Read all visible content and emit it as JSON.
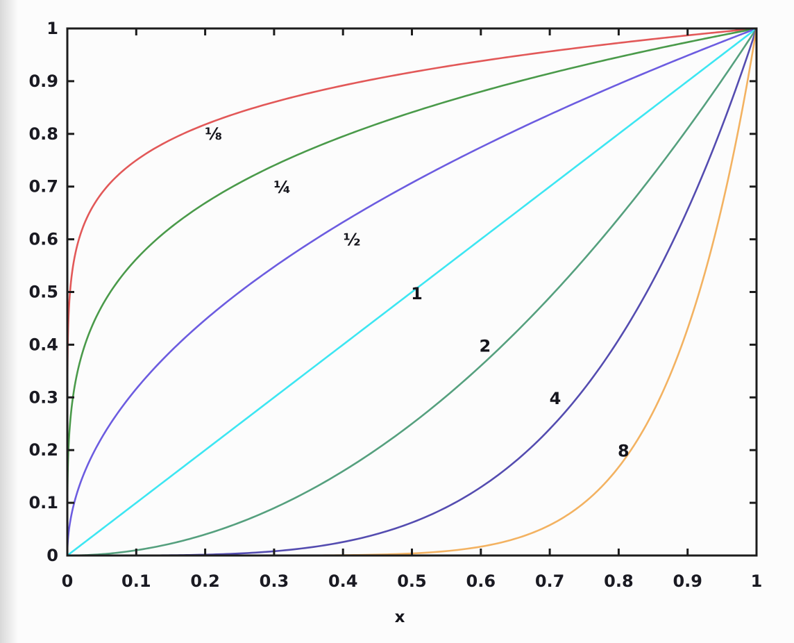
{
  "style": {
    "background": "#fcfcfc",
    "axis_color": "#1c1c1c",
    "tick_label_color": "#1a1a22",
    "curve_label_color": "#15151c"
  },
  "chart_data": {
    "type": "line",
    "title": "",
    "subtitle": "",
    "xlabel": "x",
    "ylabel": "",
    "xlim": [
      0,
      1
    ],
    "ylim": [
      0,
      1
    ],
    "grid": false,
    "legend": "inline-curve-labels",
    "description": "Family of power curves y = x^p on the unit square; each curve labeled with its exponent p; all curves pass through (0,0) and (1,1).",
    "xticks": {
      "values": [
        0,
        0.1,
        0.2,
        0.3,
        0.4,
        0.5,
        0.6,
        0.7,
        0.8,
        0.9,
        1
      ],
      "labels": [
        "0",
        "0.1",
        "0.2",
        "0.3",
        "0.4",
        "0.5",
        "0.6",
        "0.7",
        "0.8",
        "0.9",
        "1"
      ]
    },
    "yticks": {
      "values": [
        0,
        0.1,
        0.2,
        0.3,
        0.4,
        0.5,
        0.6,
        0.7,
        0.8,
        0.9,
        1
      ],
      "labels": [
        "0",
        "0.1",
        "0.2",
        "0.3",
        "0.4",
        "0.5",
        "0.6",
        "0.7",
        "0.8",
        "0.9",
        "1"
      ]
    },
    "series": [
      {
        "name": "x^(1/8)",
        "label": "⅛",
        "exponent": 0.125,
        "color": "#e25858",
        "label_x": 0.212,
        "label_y": 0.8
      },
      {
        "name": "x^(1/4)",
        "label": "¼",
        "exponent": 0.25,
        "color": "#4a9a4a",
        "label_x": 0.312,
        "label_y": 0.698
      },
      {
        "name": "x^(1/2)",
        "label": "½",
        "exponent": 0.5,
        "color": "#6c5ce0",
        "label_x": 0.413,
        "label_y": 0.599
      },
      {
        "name": "x^1",
        "label": "1",
        "exponent": 1,
        "color": "#3de6f2",
        "label_x": 0.507,
        "label_y": 0.497
      },
      {
        "name": "x^2",
        "label": "2",
        "exponent": 2,
        "color": "#55a07e",
        "label_x": 0.606,
        "label_y": 0.397
      },
      {
        "name": "x^4",
        "label": "4",
        "exponent": 4,
        "color": "#544cb0",
        "label_x": 0.708,
        "label_y": 0.298
      },
      {
        "name": "x^8",
        "label": "8",
        "exponent": 8,
        "color": "#f3b261",
        "label_x": 0.807,
        "label_y": 0.198
      }
    ]
  }
}
